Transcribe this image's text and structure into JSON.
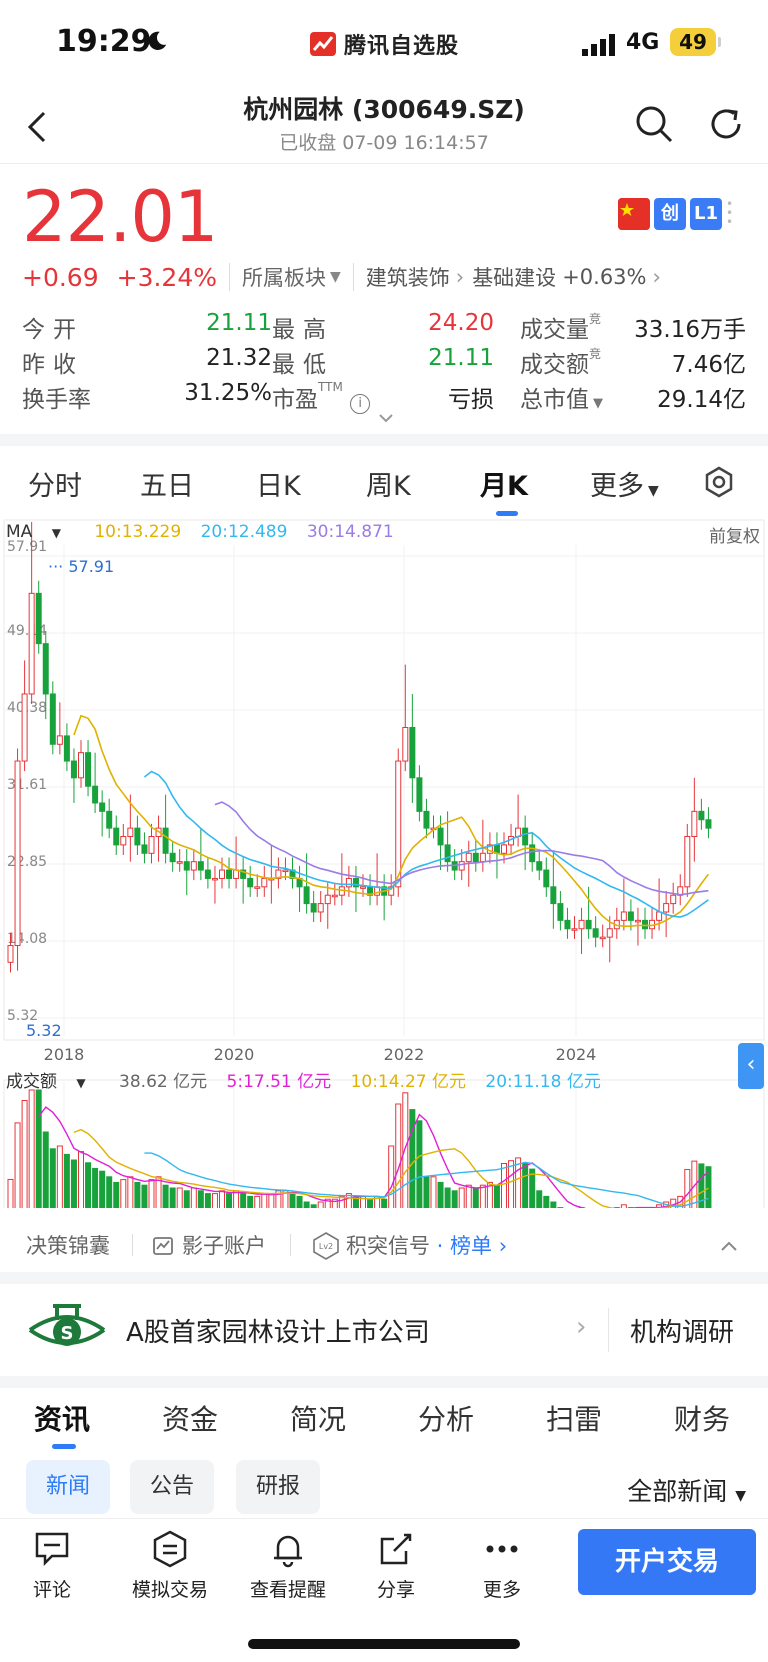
{
  "status": {
    "time": "19:29",
    "brand": "腾讯自选股",
    "network": "4G",
    "battery": "49"
  },
  "header": {
    "title": "杭州园林 (300649.SZ)",
    "subtitle": "已收盘 07-09 16:14:57"
  },
  "quote": {
    "price": "22.01",
    "change": "+0.69",
    "change_pct": "+3.24%",
    "sector_label": "所属板块",
    "sector1": "建筑装饰",
    "sector2": "基础建设",
    "sector2_pct": "+0.63%",
    "badge_chuang": "创",
    "badge_l1": "L1"
  },
  "stats": {
    "open_label": "今开",
    "open": "21.11",
    "high_label": "最高",
    "high": "24.20",
    "volume_label": "成交量",
    "volume": "33.16万手",
    "prev_label": "昨收",
    "prev": "21.32",
    "low_label": "最低",
    "low": "21.11",
    "amount_label": "成交额",
    "amount": "7.46亿",
    "turnover_label": "换手率",
    "turnover": "31.25%",
    "pe_label": "市盈",
    "pe_sup": "TTM",
    "pe": "亏损",
    "mcap_label": "总市值",
    "mcap": "29.14亿",
    "jing": "竞"
  },
  "period_tabs": [
    "分时",
    "五日",
    "日K",
    "周K",
    "月K",
    "更多"
  ],
  "ma": {
    "label": "MA",
    "ma10": "10:13.229",
    "ma20": "20:12.489",
    "ma30": "30:14.871",
    "adj": "前复权"
  },
  "volume_bar": {
    "label": "成交额",
    "total": "38.62 亿元",
    "v5": "5:17.51 亿元",
    "v10": "10:14.27 亿元",
    "v20": "20:11.18 亿元"
  },
  "chart_data": {
    "type": "candlestick",
    "y_ticks": [
      "57.91",
      "49.14",
      "40.38",
      "31.61",
      "22.85",
      "14.08",
      "5.32"
    ],
    "ylim": [
      5.32,
      57.91
    ],
    "x_ticks": [
      "2018",
      "2020",
      "2022",
      "2024"
    ],
    "max_label": "57.91",
    "min_label": "5.32",
    "colors": {
      "up": "#e6353a",
      "down": "#18a23c",
      "ma10": "#e0b200",
      "ma20": "#33b8f0",
      "ma30": "#9b7be6",
      "vol5": "#e020d6"
    }
  },
  "chart_tools": {
    "t1": "决策锦囊",
    "t2": "影子账户",
    "t3": "积突信号",
    "t3b": "榜单"
  },
  "feature": {
    "text": "A股首家园林设计上市公司",
    "right": "机构调研"
  },
  "news_tabs": [
    "资讯",
    "资金",
    "简况",
    "分析",
    "扫雷",
    "财务"
  ],
  "sub_tabs": [
    "新闻",
    "公告",
    "研报"
  ],
  "all_news": "全部新闻",
  "bottom": {
    "comment": "评论",
    "sim": "模拟交易",
    "alert": "查看提醒",
    "share": "分享",
    "more": "更多",
    "open": "开户交易"
  }
}
